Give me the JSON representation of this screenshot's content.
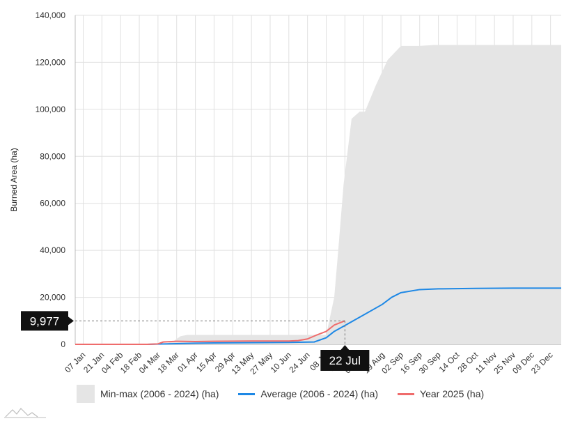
{
  "chart_data": {
    "type": "area",
    "ylabel": "Burned Area (ha)",
    "xlabel": "",
    "ylim": [
      0,
      140000
    ],
    "yticks": [
      0,
      20000,
      40000,
      60000,
      80000,
      100000,
      120000,
      140000
    ],
    "ytick_labels": [
      "0",
      "20,000",
      "40,000",
      "60,000",
      "80,000",
      "100,000",
      "120,000",
      "140,000"
    ],
    "xlim": [
      1,
      365
    ],
    "categories": [
      "07 Jan",
      "21 Jan",
      "04 Feb",
      "18 Feb",
      "04 Mar",
      "18 Mar",
      "01 Apr",
      "15 Apr",
      "29 Apr",
      "13 May",
      "27 May",
      "10 Jun",
      "24 Jun",
      "08 Jul",
      "22 Jul",
      "05 Aug",
      "19 Aug",
      "02 Sep",
      "16 Sep",
      "30 Sep",
      "14 Oct",
      "28 Oct",
      "11 Nov",
      "25 Nov",
      "09 Dec",
      "23 Dec"
    ],
    "category_day": [
      7,
      21,
      35,
      49,
      63,
      77,
      91,
      105,
      119,
      133,
      147,
      161,
      175,
      189,
      203,
      217,
      231,
      245,
      259,
      273,
      287,
      301,
      315,
      329,
      343,
      357
    ],
    "grid": true,
    "legend_position": "bottom",
    "series": [
      {
        "name": "Min-max (2006 - 2024) (ha)",
        "kind": "range",
        "color": "#e5e5e5",
        "x": [
          1,
          60,
          70,
          75,
          80,
          85,
          189,
          195,
          198,
          202,
          208,
          214,
          218,
          226,
          235,
          245,
          259,
          270,
          300,
          365
        ],
        "lower": [
          0,
          0,
          0,
          0,
          0,
          0,
          0,
          0,
          0,
          0,
          0,
          0,
          0,
          0,
          0,
          0,
          0,
          0,
          0,
          0
        ],
        "upper": [
          0,
          0,
          500,
          1500,
          3500,
          4000,
          4000,
          20000,
          40000,
          68000,
          96000,
          99000,
          99000,
          110000,
          121000,
          127000,
          127000,
          127400,
          127400,
          127400
        ]
      },
      {
        "name": "Average (2006 - 2024) (ha)",
        "kind": "line",
        "color": "#1e88e5",
        "x": [
          1,
          55,
          63,
          77,
          91,
          105,
          133,
          161,
          180,
          189,
          195,
          203,
          217,
          231,
          238,
          245,
          259,
          273,
          301,
          329,
          365
        ],
        "y": [
          0,
          0,
          100,
          300,
          500,
          600,
          700,
          800,
          1000,
          2800,
          5500,
          8000,
          12500,
          17000,
          20000,
          22000,
          23300,
          23600,
          23800,
          23900,
          23900
        ]
      },
      {
        "name": "Year 2025 (ha)",
        "kind": "line",
        "color": "#ef6c6c",
        "x": [
          1,
          55,
          63,
          67,
          77,
          91,
          105,
          133,
          161,
          168,
          175,
          182,
          189,
          195,
          203
        ],
        "y": [
          0,
          0,
          200,
          1000,
          1300,
          1200,
          1300,
          1400,
          1400,
          1600,
          2300,
          4000,
          5500,
          8200,
          9977
        ]
      }
    ],
    "tooltip": {
      "value_label": "9,977",
      "value": 9977,
      "date_label": "22 Jul",
      "day": 203
    }
  }
}
